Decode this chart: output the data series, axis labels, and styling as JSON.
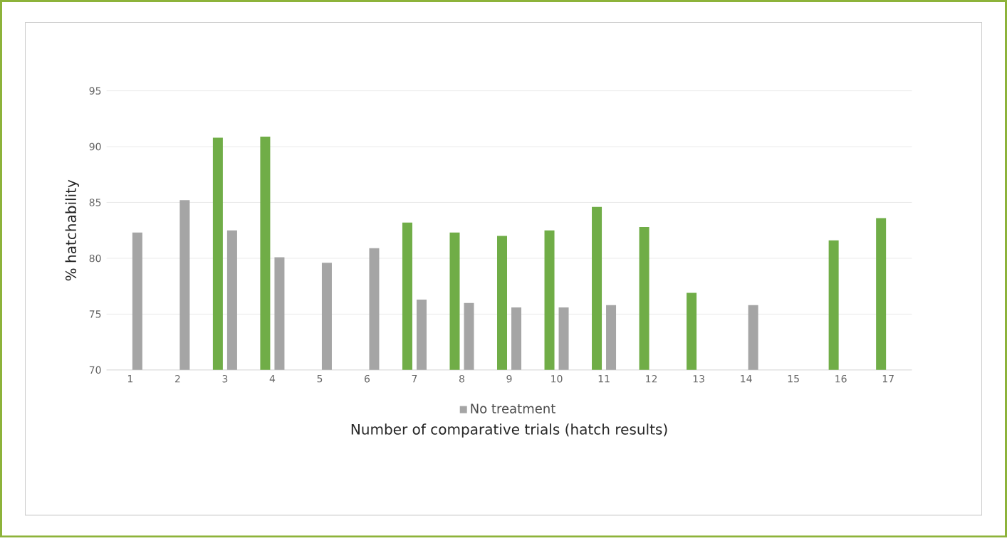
{
  "chart_data": {
    "type": "bar",
    "xlabel": "Number of comparative trials (hatch results)",
    "ylabel": "% hatchability",
    "categories": [
      "1",
      "2",
      "3",
      "4",
      "5",
      "6",
      "7",
      "8",
      "9",
      "10",
      "11",
      "12",
      "13",
      "14",
      "15",
      "16",
      "17"
    ],
    "series": [
      {
        "color": "#70ad47",
        "values": [
          null,
          null,
          90.8,
          90.9,
          null,
          null,
          83.2,
          82.3,
          82.0,
          82.5,
          84.6,
          82.8,
          76.9,
          null,
          null,
          81.6,
          83.6
        ]
      },
      {
        "name": "No treatment",
        "color": "#a5a5a5",
        "values": [
          82.3,
          85.2,
          82.5,
          80.1,
          79.6,
          80.9,
          76.3,
          76.0,
          75.6,
          75.6,
          75.8,
          null,
          null,
          75.8,
          null,
          null,
          null
        ]
      }
    ],
    "ylim": [
      70,
      95
    ],
    "yticks": [
      70,
      75,
      80,
      85,
      90,
      95
    ],
    "grid": "y",
    "legend": "bottom"
  }
}
